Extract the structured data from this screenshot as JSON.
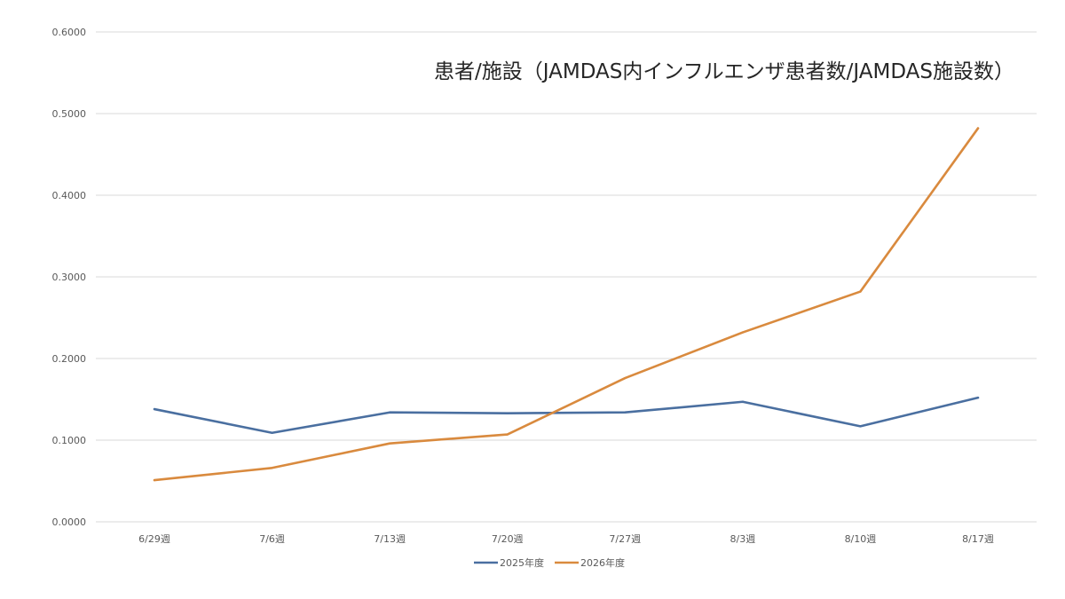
{
  "chart_data": {
    "type": "line",
    "title": "患者/施設（JAMDAS内インフルエンザ患者数/JAMDAS施設数）",
    "xlabel": "",
    "ylabel": "",
    "categories": [
      "6/29週",
      "7/6週",
      "7/13週",
      "7/20週",
      "7/27週",
      "8/3週",
      "8/10週",
      "8/17週"
    ],
    "y_ticks": [
      "0.0000",
      "0.1000",
      "0.2000",
      "0.3000",
      "0.4000",
      "0.5000",
      "0.6000"
    ],
    "ylim": [
      0,
      0.6
    ],
    "grid": true,
    "legend_position": "bottom",
    "series": [
      {
        "name": "2025年度",
        "color": "#4a6fa0",
        "values": [
          0.138,
          0.109,
          0.134,
          0.133,
          0.134,
          0.147,
          0.117,
          0.152
        ]
      },
      {
        "name": "2026年度",
        "color": "#d98a3e",
        "values": [
          0.051,
          0.066,
          0.096,
          0.107,
          0.176,
          0.232,
          0.282,
          0.482
        ]
      }
    ]
  }
}
